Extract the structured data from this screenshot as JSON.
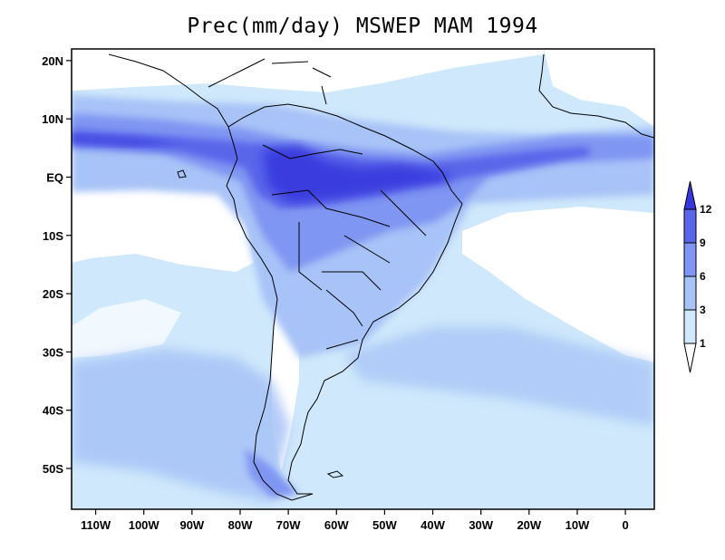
{
  "title": "Prec(mm/day) MSWEP MAM 1994",
  "map": {
    "variable": "Precipitation",
    "units": "mm/day",
    "dataset": "MSWEP",
    "season": "MAM",
    "year": "1994",
    "lon_range": [
      -115,
      6
    ],
    "lat_range": [
      -57,
      22
    ],
    "x_ticks": [
      {
        "label": "110W",
        "lon": -110
      },
      {
        "label": "100W",
        "lon": -100
      },
      {
        "label": "90W",
        "lon": -90
      },
      {
        "label": "80W",
        "lon": -80
      },
      {
        "label": "70W",
        "lon": -70
      },
      {
        "label": "60W",
        "lon": -60
      },
      {
        "label": "50W",
        "lon": -50
      },
      {
        "label": "40W",
        "lon": -40
      },
      {
        "label": "30W",
        "lon": -30
      },
      {
        "label": "20W",
        "lon": -20
      },
      {
        "label": "10W",
        "lon": -10
      },
      {
        "label": "0",
        "lon": 0
      }
    ],
    "y_ticks": [
      {
        "label": "20N",
        "lat": 20
      },
      {
        "label": "10N",
        "lat": 10
      },
      {
        "label": "EQ",
        "lat": 0
      },
      {
        "label": "10S",
        "lat": -10
      },
      {
        "label": "20S",
        "lat": -20
      },
      {
        "label": "30S",
        "lat": -30
      },
      {
        "label": "40S",
        "lat": -40
      },
      {
        "label": "50S",
        "lat": -50
      }
    ]
  },
  "colorbar": {
    "levels": [
      "1",
      "3",
      "6",
      "9",
      "12"
    ],
    "colors": [
      "#ffffff",
      "#cfe8fb",
      "#a7c3f7",
      "#7f96f2",
      "#5a66ea",
      "#3636dd"
    ]
  }
}
